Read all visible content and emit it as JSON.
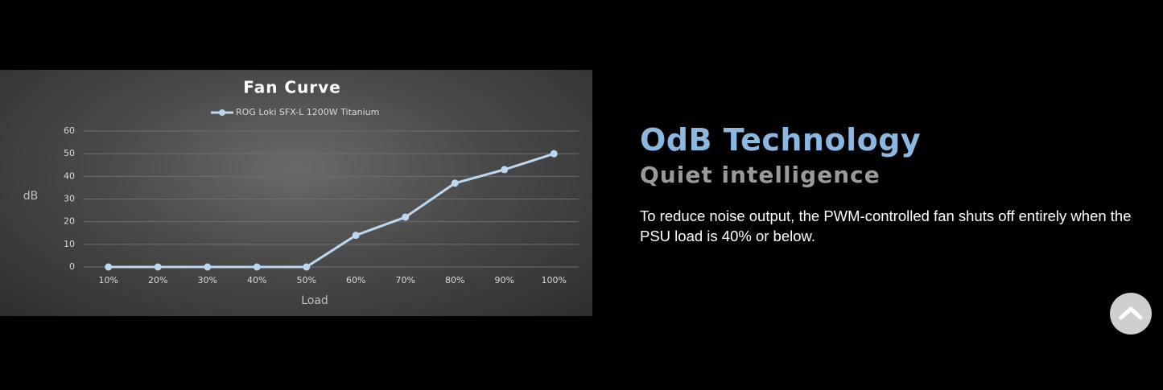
{
  "chart_data": {
    "type": "line",
    "title": "Fan Curve",
    "x_label": "Load",
    "y_label": "dB",
    "categories": [
      "10%",
      "20%",
      "30%",
      "40%",
      "50%",
      "60%",
      "70%",
      "80%",
      "90%",
      "100%"
    ],
    "series": [
      {
        "name": "ROG Loki SFX-L 1200W Titanium",
        "color": "#bdd7ee",
        "values": [
          0,
          0,
          0,
          0,
          0,
          14,
          22,
          37,
          43,
          50
        ]
      }
    ],
    "ylim": [
      0,
      60
    ],
    "yticks": [
      0,
      10,
      20,
      30,
      40,
      50,
      60
    ],
    "grid": true,
    "legend": "top"
  },
  "heading": "OdB Technology",
  "subheading": "Quiet intelligence",
  "body": "To reduce noise output, the PWM-controlled fan shuts off entirely when the PSU load is 40% or below."
}
